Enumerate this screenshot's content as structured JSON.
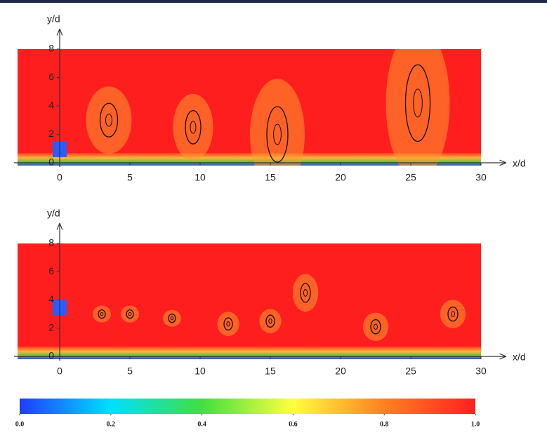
{
  "chart_data": [
    {
      "type": "contour",
      "x_label": "x/d",
      "y_label": "y/d",
      "xlim": [
        -3,
        30
      ],
      "ylim": [
        0,
        8
      ],
      "xticks": [
        0,
        5,
        10,
        15,
        20,
        25,
        30
      ],
      "yticks": [
        0,
        2,
        4,
        6,
        8
      ]
    },
    {
      "type": "contour",
      "x_label": "x/d",
      "y_label": "y/d",
      "xlim": [
        -3,
        30
      ],
      "ylim": [
        0,
        8
      ],
      "xticks": [
        0,
        5,
        10,
        15,
        20,
        25,
        30
      ],
      "yticks": [
        0,
        2,
        4,
        6,
        8
      ]
    },
    {
      "type": "colorbar",
      "xlim": [
        0,
        1
      ],
      "colormap": [
        "#1f3dff",
        "#00e0ff",
        "#40e040",
        "#ffff40",
        "#ff8020",
        "#ff2020"
      ],
      "xticks": [
        {
          "value": 0,
          "label": "0.0"
        },
        {
          "value": 0.2,
          "label": "0.2"
        },
        {
          "value": 0.4,
          "label": "0.4"
        },
        {
          "value": 0.6,
          "label": "0.6"
        },
        {
          "value": 0.8,
          "label": "0.8"
        },
        {
          "value": 1,
          "label": "1.0"
        }
      ]
    }
  ]
}
